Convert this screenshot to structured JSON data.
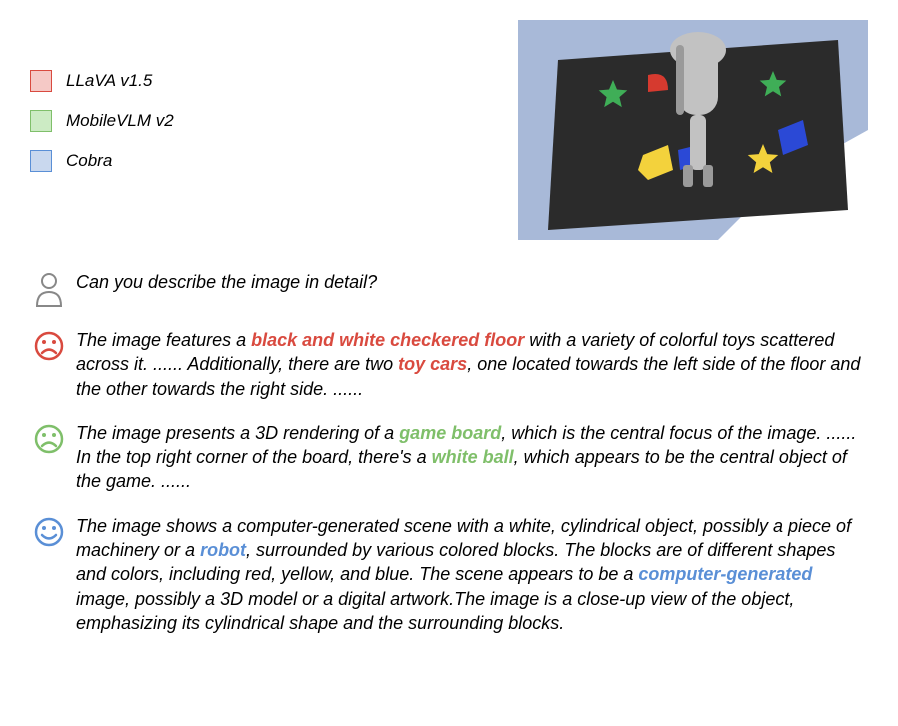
{
  "legend": {
    "items": [
      {
        "label": "LLaVA v1.5",
        "fill": "#f5c9c6",
        "border": "#d94a3f"
      },
      {
        "label": "MobileVLM v2",
        "fill": "#ccebc4",
        "border": "#7fbf6a"
      },
      {
        "label": "Cobra",
        "fill": "#c9d8ee",
        "border": "#5a8fd6"
      }
    ]
  },
  "scene": {
    "background_color": "#a8b9d8",
    "floor_color": "#2b2b2b",
    "lower_right_bg": "#ffffff",
    "robot_color": "#c2c2c2",
    "robot_shadow": "#9a9a9a",
    "shapes": {
      "red": "#d63a2f",
      "green": "#3fae57",
      "yellow": "#f3d23c",
      "blue": "#2b49d6"
    }
  },
  "question": {
    "text": "Can you describe the image in detail?"
  },
  "responses": [
    {
      "icon_color": "#d94a3f",
      "mood": "sad",
      "segments": [
        {
          "t": "The image features a "
        },
        {
          "t": "black and white checkered floor",
          "c": "hl-red"
        },
        {
          "t": " with a variety of colorful toys scattered across it. ...... Additionally, there are two "
        },
        {
          "t": "toy cars",
          "c": "hl-red"
        },
        {
          "t": ", one located towards the left side of the floor and the other towards the right side. ......"
        }
      ]
    },
    {
      "icon_color": "#7fbf6a",
      "mood": "sad",
      "segments": [
        {
          "t": "The image presents a 3D rendering of a "
        },
        {
          "t": "game board",
          "c": "hl-green"
        },
        {
          "t": ", which is the central focus of the image. ...... In the top right corner of the board, there's a "
        },
        {
          "t": "white ball",
          "c": "hl-green"
        },
        {
          "t": ", which appears to be the central object of the game. ......"
        }
      ]
    },
    {
      "icon_color": "#5a8fd6",
      "mood": "happy",
      "segments": [
        {
          "t": "The image shows a computer-generated scene with a white, cylindrical object, possibly a piece of machinery or a "
        },
        {
          "t": "robot",
          "c": "hl-blue"
        },
        {
          "t": ", surrounded by various colored blocks. The blocks are of different shapes and colors, including red, yellow, and blue. The scene appears to be a "
        },
        {
          "t": "computer-generated",
          "c": "hl-blue"
        },
        {
          "t": " image, possibly a 3D model or a digital artwork.The image is a close-up view of the object, emphasizing its cylindrical shape and the surrounding blocks."
        }
      ]
    }
  ]
}
